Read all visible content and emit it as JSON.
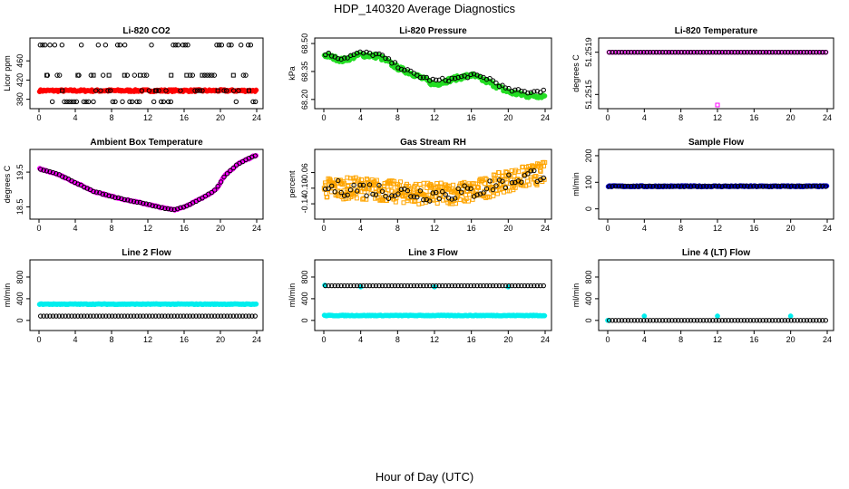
{
  "title": "HDP_140320  Average Diagnostics",
  "xlabel": "Hour of Day (UTC)",
  "colors": {
    "black": "#000000",
    "red": "#ff0000",
    "green": "#22dd22",
    "magenta": "#ff00ff",
    "orange": "#ffa500",
    "blue": "#0000cc",
    "cyan": "#00eeee"
  },
  "chart_data": [
    {
      "type": "scatter",
      "title": "Li-820 CO2",
      "ylabel": "Licor ppm",
      "xlim": [
        0,
        24
      ],
      "ylim": [
        368,
        500
      ],
      "xticks": [
        "0",
        "4",
        "8",
        "12",
        "16",
        "20",
        "24"
      ],
      "yticks": [
        "380",
        "420",
        "460"
      ],
      "series": [
        {
          "color": "red",
          "pattern": "flat",
          "y": 398,
          "noise": 2,
          "n": 200,
          "marker": "dot"
        },
        {
          "color": "black",
          "pattern": "levels",
          "levels": [
            375,
            398,
            430,
            493
          ],
          "n": 90,
          "marker": "circle"
        },
        {
          "color": "black",
          "pattern": "levels",
          "levels": [
            398,
            430
          ],
          "n": 14,
          "marker": "square"
        }
      ]
    },
    {
      "type": "scatter",
      "title": "Li-820 Pressure",
      "ylabel": "kPa",
      "xlim": [
        0,
        24
      ],
      "ylim": [
        68.17,
        68.51
      ],
      "xticks": [
        "0",
        "4",
        "8",
        "12",
        "16",
        "20",
        "24"
      ],
      "yticks": [
        "68.20",
        "68.35",
        "68.50"
      ],
      "series": [
        {
          "color": "green",
          "pattern": "curve",
          "points": [
            [
              0,
              68.44
            ],
            [
              2,
              68.41
            ],
            [
              4,
              68.44
            ],
            [
              6,
              68.43
            ],
            [
              8,
              68.37
            ],
            [
              10,
              68.33
            ],
            [
              12,
              68.28
            ],
            [
              14,
              68.31
            ],
            [
              16,
              68.33
            ],
            [
              18,
              68.29
            ],
            [
              20,
              68.24
            ],
            [
              22,
              68.22
            ],
            [
              24,
              68.22
            ]
          ],
          "noise": 0.012,
          "n": 220,
          "marker": "dot"
        },
        {
          "color": "black",
          "pattern": "curve",
          "points": [
            [
              0,
              68.45
            ],
            [
              2,
              68.42
            ],
            [
              4,
              68.45
            ],
            [
              6,
              68.44
            ],
            [
              8,
              68.38
            ],
            [
              10,
              68.33
            ],
            [
              12,
              68.3
            ],
            [
              14,
              68.31
            ],
            [
              16,
              68.33
            ],
            [
              18,
              68.31
            ],
            [
              20,
              68.25
            ],
            [
              22,
              68.24
            ],
            [
              24,
              68.25
            ]
          ],
          "noise": 0.01,
          "n": 70,
          "marker": "circle"
        }
      ]
    },
    {
      "type": "scatter",
      "title": "Li-820 Temperature",
      "ylabel": "degrees C",
      "xlim": [
        0,
        24
      ],
      "ylim": [
        51.2514,
        51.252
      ],
      "xticks": [
        "0",
        "4",
        "8",
        "12",
        "16",
        "20",
        "24"
      ],
      "yticks": [
        "51.2515",
        "51.2519"
      ],
      "series": [
        {
          "color": "magenta",
          "pattern": "flat",
          "y": 51.2519,
          "noise": 0,
          "n": 95,
          "marker": "circle"
        },
        {
          "color": "black",
          "pattern": "flat",
          "y": 51.2519,
          "noise": 0,
          "n": 70,
          "marker": "circle"
        },
        {
          "color": "magenta",
          "pattern": "points",
          "points": [
            [
              12,
              51.2514
            ]
          ],
          "marker": "square"
        }
      ]
    },
    {
      "type": "scatter",
      "title": "Ambient Box Temperature",
      "ylabel": "degrees C",
      "xlim": [
        0,
        24
      ],
      "ylim": [
        18.25,
        20.05
      ],
      "xticks": [
        "0",
        "4",
        "8",
        "12",
        "16",
        "20",
        "24"
      ],
      "yticks": [
        "18.5",
        "19.5"
      ],
      "series": [
        {
          "color": "magenta",
          "pattern": "curve",
          "points": [
            [
              0,
              19.6
            ],
            [
              2,
              19.45
            ],
            [
              4,
              19.2
            ],
            [
              6,
              18.95
            ],
            [
              8,
              18.8
            ],
            [
              10,
              18.68
            ],
            [
              12,
              18.57
            ],
            [
              14,
              18.45
            ],
            [
              15,
              18.42
            ],
            [
              16,
              18.5
            ],
            [
              18,
              18.75
            ],
            [
              19.5,
              19.0
            ],
            [
              20.5,
              19.4
            ],
            [
              22,
              19.75
            ],
            [
              24,
              20.0
            ]
          ],
          "noise": 0.015,
          "n": 150,
          "marker": "dot"
        },
        {
          "color": "black",
          "pattern": "curve",
          "points": [
            [
              0,
              19.6
            ],
            [
              2,
              19.45
            ],
            [
              4,
              19.2
            ],
            [
              6,
              18.95
            ],
            [
              8,
              18.8
            ],
            [
              10,
              18.68
            ],
            [
              12,
              18.57
            ],
            [
              14,
              18.45
            ],
            [
              15,
              18.42
            ],
            [
              16,
              18.5
            ],
            [
              18,
              18.75
            ],
            [
              19.5,
              19.0
            ],
            [
              20.5,
              19.4
            ],
            [
              22,
              19.75
            ],
            [
              24,
              20.0
            ]
          ],
          "noise": 0.01,
          "n": 70,
          "marker": "circle"
        }
      ]
    },
    {
      "type": "scatter",
      "title": "Gas Stream RH",
      "ylabel": "percent",
      "xlim": [
        0,
        24
      ],
      "ylim": [
        -0.17,
        -0.01
      ],
      "xticks": [
        "0",
        "4",
        "8",
        "12",
        "16",
        "20",
        "24"
      ],
      "yticks": [
        "-0.14",
        "-0.10",
        "-0.06"
      ],
      "series": [
        {
          "color": "orange",
          "pattern": "curve",
          "points": [
            [
              0,
              -0.1
            ],
            [
              4,
              -0.1
            ],
            [
              8,
              -0.11
            ],
            [
              12,
              -0.115
            ],
            [
              16,
              -0.11
            ],
            [
              20,
              -0.08
            ],
            [
              24,
              -0.06
            ]
          ],
          "noise": 0.028,
          "n": 420,
          "marker": "square"
        },
        {
          "color": "black",
          "pattern": "curve",
          "points": [
            [
              0,
              -0.1
            ],
            [
              4,
              -0.1
            ],
            [
              8,
              -0.11
            ],
            [
              12,
              -0.115
            ],
            [
              16,
              -0.11
            ],
            [
              20,
              -0.08
            ],
            [
              24,
              -0.06
            ]
          ],
          "noise": 0.02,
          "n": 70,
          "marker": "circle"
        }
      ]
    },
    {
      "type": "scatter",
      "title": "Sample Flow",
      "ylabel": "ml/min",
      "xlim": [
        0,
        24
      ],
      "ylim": [
        -25,
        210
      ],
      "xticks": [
        "0",
        "4",
        "8",
        "12",
        "16",
        "20",
        "24"
      ],
      "yticks": [
        "0",
        "100",
        "200"
      ],
      "series": [
        {
          "color": "blue",
          "pattern": "flat",
          "y": 85,
          "noise": 2,
          "n": 200,
          "marker": "dot"
        },
        {
          "color": "black",
          "pattern": "flat",
          "y": 85,
          "noise": 1,
          "n": 70,
          "marker": "circle"
        }
      ]
    },
    {
      "type": "scatter",
      "title": "Line 2 Flow",
      "ylabel": "ml/min",
      "xlim": [
        0,
        24
      ],
      "ylim": [
        -120,
        1050
      ],
      "xticks": [
        "0",
        "4",
        "8",
        "12",
        "16",
        "20",
        "24"
      ],
      "yticks": [
        "0",
        "400",
        "800"
      ],
      "series": [
        {
          "color": "cyan",
          "pattern": "flat",
          "y": 300,
          "noise": 6,
          "n": 200,
          "marker": "dot"
        },
        {
          "color": "black",
          "pattern": "flat",
          "y": 80,
          "noise": 0,
          "n": 70,
          "marker": "circle"
        }
      ]
    },
    {
      "type": "scatter",
      "title": "Line 3 Flow",
      "ylabel": "ml/min",
      "xlim": [
        0,
        24
      ],
      "ylim": [
        -120,
        1050
      ],
      "xticks": [
        "0",
        "4",
        "8",
        "12",
        "16",
        "20",
        "24"
      ],
      "yticks": [
        "0",
        "400",
        "800"
      ],
      "series": [
        {
          "color": "cyan",
          "pattern": "flat",
          "y": 90,
          "noise": 6,
          "n": 200,
          "marker": "dot"
        },
        {
          "color": "cyan",
          "pattern": "points",
          "points": [
            [
              0.1,
              650
            ],
            [
              4,
              620
            ],
            [
              12,
              620
            ],
            [
              20,
              620
            ]
          ],
          "marker": "dot"
        },
        {
          "color": "black",
          "pattern": "flat",
          "y": 640,
          "noise": 0,
          "n": 70,
          "marker": "circle"
        }
      ]
    },
    {
      "type": "scatter",
      "title": "Line 4 (LT) Flow",
      "ylabel": "ml/min",
      "xlim": [
        0,
        24
      ],
      "ylim": [
        -120,
        1050
      ],
      "xticks": [
        "0",
        "4",
        "8",
        "12",
        "16",
        "20",
        "24"
      ],
      "yticks": [
        "0",
        "400",
        "800"
      ],
      "series": [
        {
          "color": "cyan",
          "pattern": "points",
          "points": [
            [
              0,
              0
            ],
            [
              4,
              80
            ],
            [
              12,
              80
            ],
            [
              20,
              80
            ]
          ],
          "marker": "dot"
        },
        {
          "color": "black",
          "pattern": "flat",
          "y": 0,
          "noise": 0,
          "n": 70,
          "marker": "circle"
        }
      ]
    }
  ]
}
